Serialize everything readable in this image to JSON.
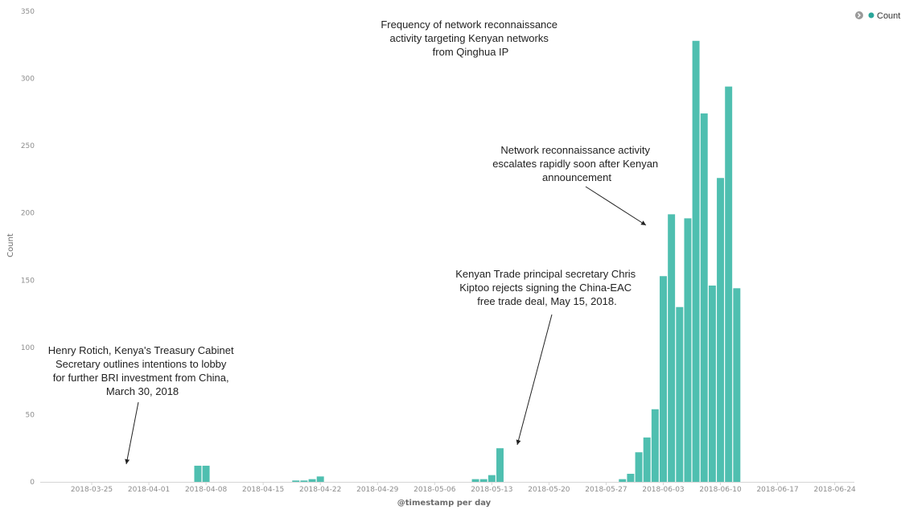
{
  "colors": {
    "bar": "#4fbfb0",
    "legend_dot": "#2aa69a",
    "axis": "#d5d5d5",
    "text": "#222222"
  },
  "legend": {
    "label": "Count",
    "toggle_icon": "chevron-right-circle-icon"
  },
  "chart_data": {
    "type": "bar",
    "title": "Frequency of network reconnaissance activity targeting Kenyan networks from Qinghua IP",
    "xlabel": "@timestamp per day",
    "ylabel": "Count",
    "ylim": [
      0,
      350
    ],
    "yticks": [
      0,
      50,
      100,
      150,
      200,
      250,
      300,
      350
    ],
    "xticks": [
      "2018-03-25",
      "2018-04-01",
      "2018-04-08",
      "2018-04-15",
      "2018-04-22",
      "2018-04-29",
      "2018-05-06",
      "2018-05-13",
      "2018-05-20",
      "2018-05-27",
      "2018-06-03",
      "2018-06-10",
      "2018-06-17",
      "2018-06-24"
    ],
    "legend_position": "top-right",
    "series": [
      {
        "name": "Count",
        "points": [
          {
            "x": "2018-04-07",
            "y": 12
          },
          {
            "x": "2018-04-08",
            "y": 12
          },
          {
            "x": "2018-04-19",
            "y": 1
          },
          {
            "x": "2018-04-20",
            "y": 1
          },
          {
            "x": "2018-04-21",
            "y": 2
          },
          {
            "x": "2018-04-22",
            "y": 4
          },
          {
            "x": "2018-05-11",
            "y": 2
          },
          {
            "x": "2018-05-12",
            "y": 2
          },
          {
            "x": "2018-05-13",
            "y": 5
          },
          {
            "x": "2018-05-14",
            "y": 25
          },
          {
            "x": "2018-05-29",
            "y": 2
          },
          {
            "x": "2018-05-30",
            "y": 6
          },
          {
            "x": "2018-05-31",
            "y": 22
          },
          {
            "x": "2018-06-01",
            "y": 33
          },
          {
            "x": "2018-06-02",
            "y": 54
          },
          {
            "x": "2018-06-03",
            "y": 153
          },
          {
            "x": "2018-06-04",
            "y": 199
          },
          {
            "x": "2018-06-05",
            "y": 130
          },
          {
            "x": "2018-06-06",
            "y": 196
          },
          {
            "x": "2018-06-07",
            "y": 328
          },
          {
            "x": "2018-06-08",
            "y": 274
          },
          {
            "x": "2018-06-09",
            "y": 146
          },
          {
            "x": "2018-06-10",
            "y": 226
          },
          {
            "x": "2018-06-11",
            "y": 294
          },
          {
            "x": "2018-06-12",
            "y": 144
          }
        ]
      }
    ],
    "annotations": [
      {
        "lines": [
          "Frequency of network reconnaissance",
          "activity targeting Kenyan networks",
          "from Qinghua IP"
        ]
      },
      {
        "lines": [
          "Network reconnaissance activity",
          "escalates rapidly soon after Kenyan",
          "announcement"
        ]
      },
      {
        "lines": [
          "Kenyan Trade principal secretary Chris",
          "Kiptoo rejects signing the China-EAC",
          "free trade deal, May 15, 2018."
        ]
      },
      {
        "lines": [
          "Henry Rotich, Kenya's Treasury Cabinet",
          "Secretary outlines intentions to lobby",
          "for further BRI investment from China,",
          "March 30, 2018"
        ]
      }
    ]
  }
}
